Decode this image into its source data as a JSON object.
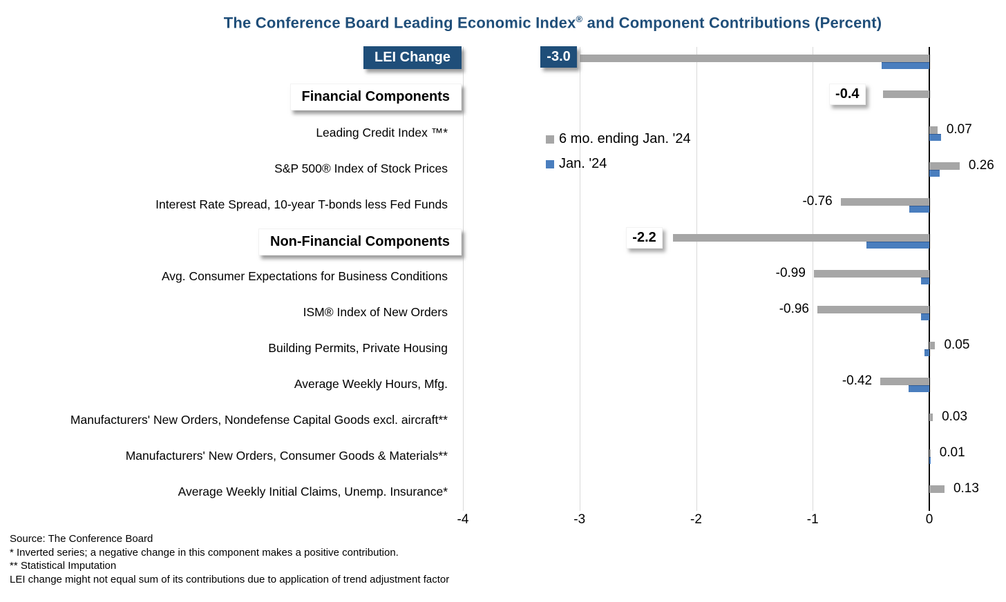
{
  "title": {
    "part1": "The Conference Board Leading Economic Index",
    "reg_mark": "®",
    "part2": " and Component Contributions (Percent)"
  },
  "colors": {
    "navy": "#1F4E79",
    "gray_bar": "#A6A6A6",
    "blue_bar": "#4A7EBE",
    "gridline": "#D9D9D9",
    "axis": "#000000"
  },
  "legend": [
    {
      "label": "6 mo. ending Jan. '24",
      "color": "#A6A6A6",
      "icon": "gray-square-swatch"
    },
    {
      "label": "Jan. '24",
      "color": "#4A7EBE",
      "icon": "blue-square-swatch"
    }
  ],
  "axis": {
    "ticks": [
      "-4",
      "-3",
      "-2",
      "-1",
      "0"
    ],
    "min": -4,
    "max": 0
  },
  "rows": [
    {
      "label": "LEI Change",
      "label_style": "navy-box",
      "value_label": "-3.0",
      "value_label_style": "boxed-navy"
    },
    {
      "label": "Financial Components",
      "label_style": "white-box",
      "value_label": "-0.4",
      "value_label_style": "boxed-white"
    },
    {
      "label": "Leading Credit Index ™*",
      "label_style": "plain",
      "value_label": "0.07",
      "value_label_style": "plain"
    },
    {
      "label": "S&P 500® Index of Stock Prices",
      "label_style": "plain",
      "value_label": "0.26",
      "value_label_style": "plain"
    },
    {
      "label": "Interest Rate Spread, 10-year T-bonds less Fed Funds",
      "label_style": "plain",
      "value_label": "-0.76",
      "value_label_style": "plain"
    },
    {
      "label": "Non-Financial Components",
      "label_style": "white-box",
      "value_label": "-2.2",
      "value_label_style": "boxed-white"
    },
    {
      "label": "Avg. Consumer Expectations for Business Conditions",
      "label_style": "plain",
      "value_label": "-0.99",
      "value_label_style": "plain"
    },
    {
      "label": "ISM® Index of New Orders",
      "label_style": "plain",
      "value_label": "-0.96",
      "value_label_style": "plain"
    },
    {
      "label": "Building Permits, Private Housing",
      "label_style": "plain",
      "value_label": "0.05",
      "value_label_style": "plain"
    },
    {
      "label": "Average Weekly Hours, Mfg.",
      "label_style": "plain",
      "value_label": "-0.42",
      "value_label_style": "plain"
    },
    {
      "label": "Manufacturers' New Orders, Nondefense Capital Goods excl. aircraft**",
      "label_style": "plain",
      "value_label": "0.03",
      "value_label_style": "plain"
    },
    {
      "label": "Manufacturers' New Orders, Consumer Goods & Materials**",
      "label_style": "plain",
      "value_label": "0.01",
      "value_label_style": "plain"
    },
    {
      "label": "Average Weekly Initial Claims, Unemp. Insurance*",
      "label_style": "plain",
      "value_label": "0.13",
      "value_label_style": "plain"
    }
  ],
  "chart_data": {
    "type": "bar",
    "orientation": "horizontal",
    "title": "The Conference Board Leading Economic Index® and Component Contributions (Percent)",
    "categories": [
      "LEI Change",
      "Financial Components",
      "Leading Credit Index ™*",
      "S&P 500® Index of Stock Prices",
      "Interest Rate Spread, 10-year T-bonds less Fed Funds",
      "Non-Financial Components",
      "Avg. Consumer Expectations for Business Conditions",
      "ISM® Index of New Orders",
      "Building Permits, Private Housing",
      "Average Weekly Hours, Mfg.",
      "Manufacturers' New Orders, Nondefense Capital Goods excl. aircraft**",
      "Manufacturers' New Orders, Consumer Goods & Materials**",
      "Average Weekly Initial Claims, Unemp. Insurance*"
    ],
    "series": [
      {
        "name": "6 mo. ending Jan. '24",
        "color": "#A6A6A6",
        "values": [
          -3.0,
          -0.4,
          0.07,
          0.26,
          -0.76,
          -2.2,
          -0.99,
          -0.96,
          0.05,
          -0.42,
          0.03,
          0.01,
          0.13
        ]
      },
      {
        "name": "Jan. '24",
        "color": "#4A7EBE",
        "values": [
          -0.41,
          null,
          0.1,
          0.09,
          -0.17,
          -0.54,
          -0.07,
          -0.07,
          -0.04,
          -0.18,
          null,
          0.01,
          null
        ]
      }
    ],
    "data_labels": [
      "-3.0",
      "-0.4",
      "0.07",
      "0.26",
      "-0.76",
      "-2.2",
      "-0.99",
      "-0.96",
      "0.05",
      "-0.42",
      "0.03",
      "0.01",
      "0.13"
    ],
    "xlim": [
      -4,
      0.66
    ],
    "x_ticks": [
      -4,
      -3,
      -2,
      -1,
      0
    ],
    "grid": true,
    "legend_position": "inside-top-left-of-plot"
  },
  "footnotes": [
    "Source: The Conference Board",
    "*  Inverted series; a negative change in this component makes a positive contribution.",
    "**  Statistical Imputation",
    "LEI change might not equal sum of  its contributions due to application of trend adjustment factor"
  ]
}
